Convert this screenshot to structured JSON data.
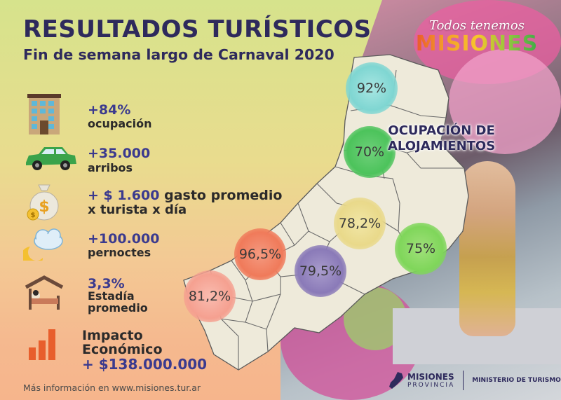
{
  "header": {
    "title": "RESULTADOS TURÍSTICOS",
    "subtitle": "Fin de semana largo de Carnaval 2020"
  },
  "brand": {
    "tagline": "Todos tenemos",
    "name": "MISIONES"
  },
  "stats": [
    {
      "icon": "hotel-building-icon",
      "value": "+84%",
      "label": "ocupación"
    },
    {
      "icon": "car-icon",
      "value": "+35.000",
      "label": "arribos"
    },
    {
      "icon": "money-bag-icon",
      "value": "+ $ 1.600",
      "value_suffix": "gasto promedio",
      "label": "x turista x día"
    },
    {
      "icon": "cloud-moon-icon",
      "value": "+100.000",
      "label": "pernoctes"
    },
    {
      "icon": "bed-icon",
      "value": "3,3%",
      "label": "Estadía",
      "label2": "promedio"
    },
    {
      "icon": "bar-chart-icon",
      "value_line1": "Impacto",
      "value_line2": "Económico",
      "label": "+ $138.000.000"
    }
  ],
  "occupancy": {
    "title_line1": "OCUPACIÓN DE",
    "title_line2": "ALOJAMIENTOS",
    "regions": [
      {
        "value": "92%",
        "color": "#7fd6d2"
      },
      {
        "value": "70%",
        "color": "#4cc35b"
      },
      {
        "value": "78,2%",
        "color": "#e9d98a"
      },
      {
        "value": "75%",
        "color": "#7fd65a"
      },
      {
        "value": "96,5%",
        "color": "#f07a5a"
      },
      {
        "value": "79,5%",
        "color": "#8a7ab8"
      },
      {
        "value": "81,2%",
        "color": "#f5a090"
      }
    ]
  },
  "footer": {
    "link": "Más información en www.misiones.tur.ar",
    "logo_name": "MISIONES",
    "logo_sub": "PROVINCIA",
    "ministry": "MINISTERIO DE TURISMO"
  }
}
